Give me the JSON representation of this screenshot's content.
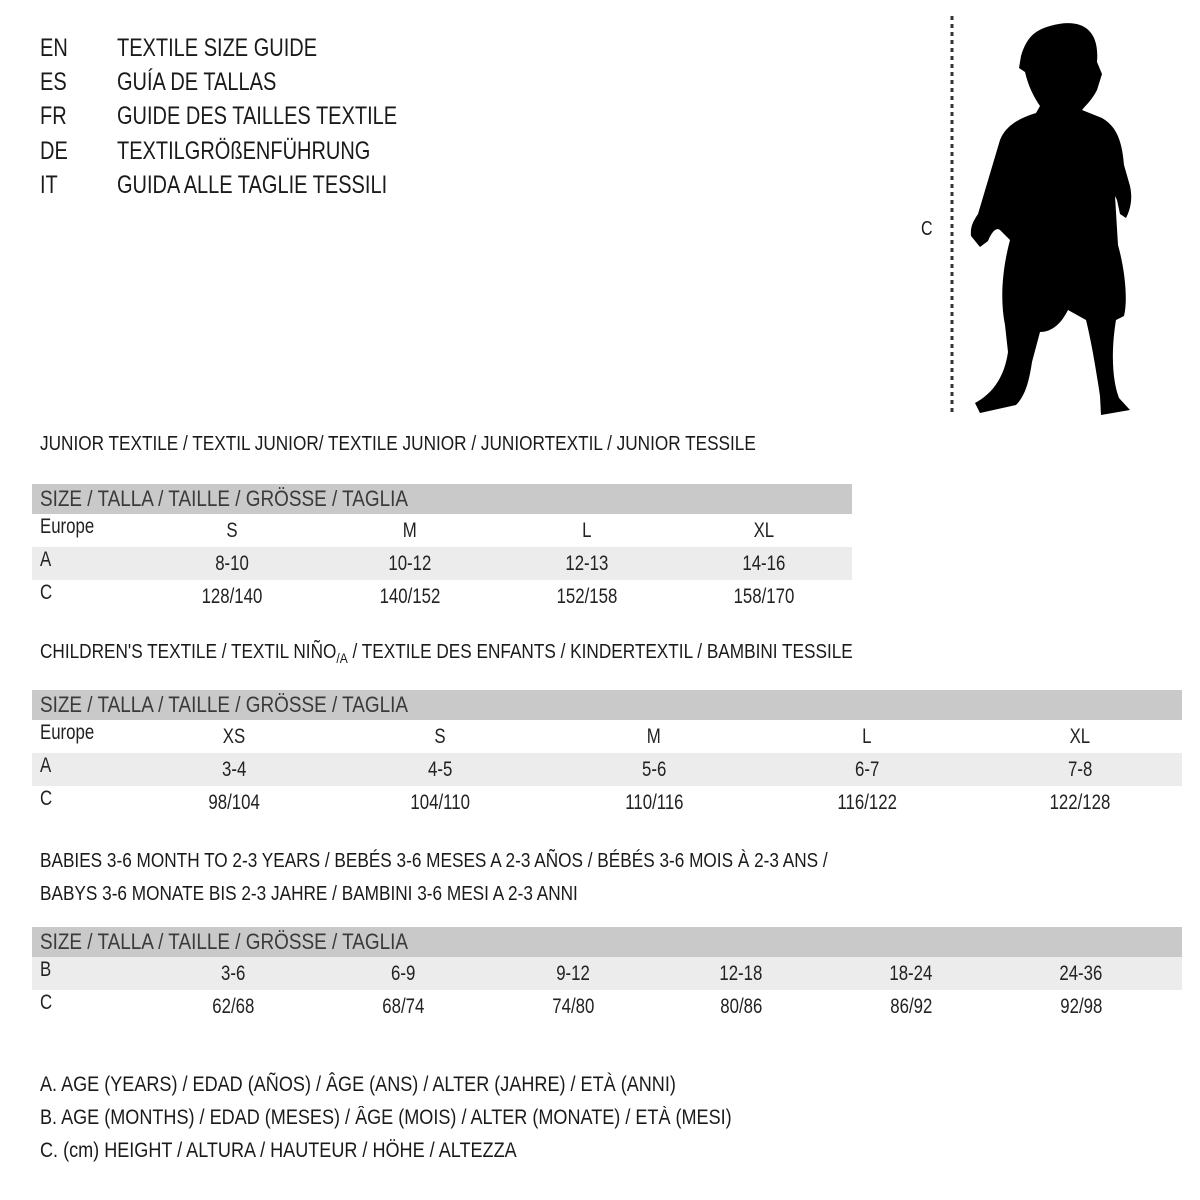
{
  "languages": [
    {
      "code": "EN",
      "title": "TEXTILE SIZE GUIDE"
    },
    {
      "code": "ES",
      "title": "GUÍA DE TALLAS"
    },
    {
      "code": "FR",
      "title": "GUIDE DES TAILLES TEXTILE"
    },
    {
      "code": "DE",
      "title": "TEXTILGRÖßENFÜHRUNG"
    },
    {
      "code": "IT",
      "title": "GUIDA ALLE TAGLIE TESSILI"
    }
  ],
  "figure": {
    "height_label": "C",
    "icon": "child-silhouette"
  },
  "sections": [
    {
      "title": "JUNIOR TEXTILE / TEXTIL JUNIOR/ TEXTILE JUNIOR / JUNIORTEXTIL / JUNIOR TESSILE",
      "header": "SIZE / TALLA / TAILLE / GRÖSSE / TAGLIA",
      "rows": [
        {
          "label": "Europe",
          "cells": [
            "S",
            "M",
            "L",
            "XL"
          ]
        },
        {
          "label": "A",
          "cells": [
            "8-10",
            "10-12",
            "12-13",
            "14-16"
          ]
        },
        {
          "label": "C",
          "cells": [
            "128/140",
            "140/152",
            "152/158",
            "158/170"
          ]
        }
      ]
    },
    {
      "title_pre": "CHILDREN'S TEXTILE / TEXTIL NIÑO",
      "title_sub": "/A",
      "title_post": " / TEXTILE DES ENFANTS / KINDERTEXTIL / BAMBINI TESSILE",
      "header": "SIZE / TALLA / TAILLE / GRÖSSE / TAGLIA",
      "rows": [
        {
          "label": "Europe",
          "cells": [
            "XS",
            "S",
            "M",
            "L",
            "XL"
          ]
        },
        {
          "label": "A",
          "cells": [
            "3-4",
            "4-5",
            "5-6",
            "6-7",
            "7-8"
          ]
        },
        {
          "label": "C",
          "cells": [
            "98/104",
            "104/110",
            "110/116",
            "116/122",
            "122/128"
          ]
        }
      ]
    },
    {
      "title_line1": "BABIES 3-6 MONTH TO 2-3 YEARS / BEBÉS 3-6 MESES A 2-3 AÑOS / BÉBÉS 3-6 MOIS À 2-3 ANS /",
      "title_line2": "BABYS 3-6 MONATE BIS 2-3 JAHRE / BAMBINI 3-6 MESI A 2-3 ANNI",
      "header": "SIZE / TALLA / TAILLE / GRÖSSE / TAGLIA",
      "rows": [
        {
          "label": "B",
          "cells": [
            "3-6",
            "6-9",
            "9-12",
            "12-18",
            "18-24",
            "24-36"
          ]
        },
        {
          "label": "C",
          "cells": [
            "62/68",
            "68/74",
            "74/80",
            "80/86",
            "86/92",
            "92/98"
          ]
        }
      ]
    }
  ],
  "legend": [
    "A. AGE (YEARS) / EDAD (AÑOS) / ÂGE (ANS) / ALTER (JAHRE) / ETÀ (ANNI)",
    "B. AGE (MONTHS) / EDAD (MESES) / ÂGE (MOIS) / ALTER (MONATE) / ETÀ (MESI)",
    "C. (cm) HEIGHT / ALTURA / HAUTEUR / HÖHE / ALTEZZA"
  ],
  "colors": {
    "header_bg": "#c9c9c9",
    "shade_row": "#ececec",
    "text": "#1a1a1a"
  }
}
